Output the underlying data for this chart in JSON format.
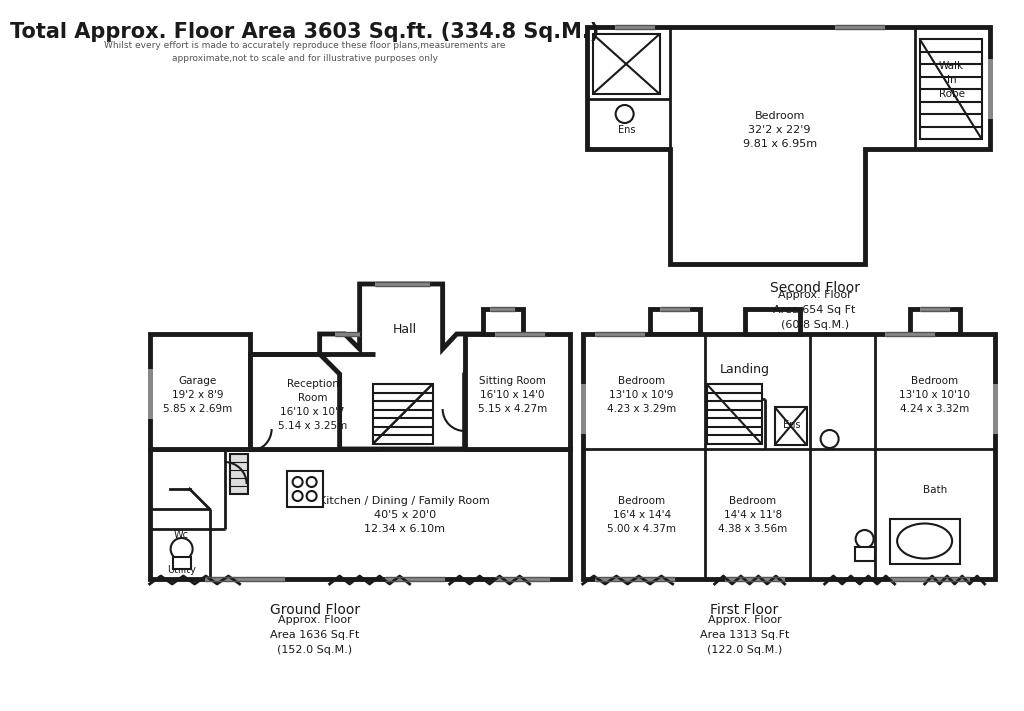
{
  "title": "Total Approx. Floor Area 3603 Sq.ft. (334.8 Sq.M.)",
  "subtitle": "Whilst every effort is made to accurately reproduce these floor plans,measurements are\napproximate,not to scale and for illustrative purposes only",
  "bg_color": "#ffffff",
  "wall_color": "#1a1a1a",
  "rooms": {
    "ground_floor_label": "Ground Floor",
    "ground_floor_area": "Approx. Floor\nArea 1636 Sq.Ft\n(152.0 Sq.M.)",
    "first_floor_label": "First Floor",
    "first_floor_area": "Approx. Floor\nArea 1313 Sq.Ft\n(122.0 Sq.M.)",
    "second_floor_label": "Second Floor",
    "second_floor_area": "Approx. Floor\nArea 654 Sq Ft\n(60.8 Sq.M.)"
  },
  "room_labels": {
    "garage": "Garage\n19'2 x 8'9\n5.85 x 2.69m",
    "reception": "Reception\nRoom\n16'10 x 10'7\n5.14 x 3.25m",
    "hall": "Hall",
    "sitting": "Sitting Room\n16'10 x 14'0\n5.15 x 4.27m",
    "kitchen": "Kitchen / Dining / Family Room\n40'5 x 20'0\n12.34 x 6.10m",
    "utility": "Utility",
    "wc": "Wc",
    "landing": "Landing",
    "bed1_f": "Bedroom\n13'10 x 10'9\n4.23 x 3.29m",
    "bed2_f": "Bedroom\n13'10 x 10'10\n4.24 x 3.32m",
    "bed3_f": "Bedroom\n16'4 x 14'4\n5.00 x 4.37m",
    "bed4_f": "Bedroom\n14'4 x 11'8\n4.38 x 3.56m",
    "bath": "Bath",
    "ens1": "Ens",
    "ens2": "Ens",
    "bed_s": "Bedroom\n32'2 x 22'9\n9.81 x 6.95m",
    "walk_in": "Walk\nIn\nRobe"
  }
}
